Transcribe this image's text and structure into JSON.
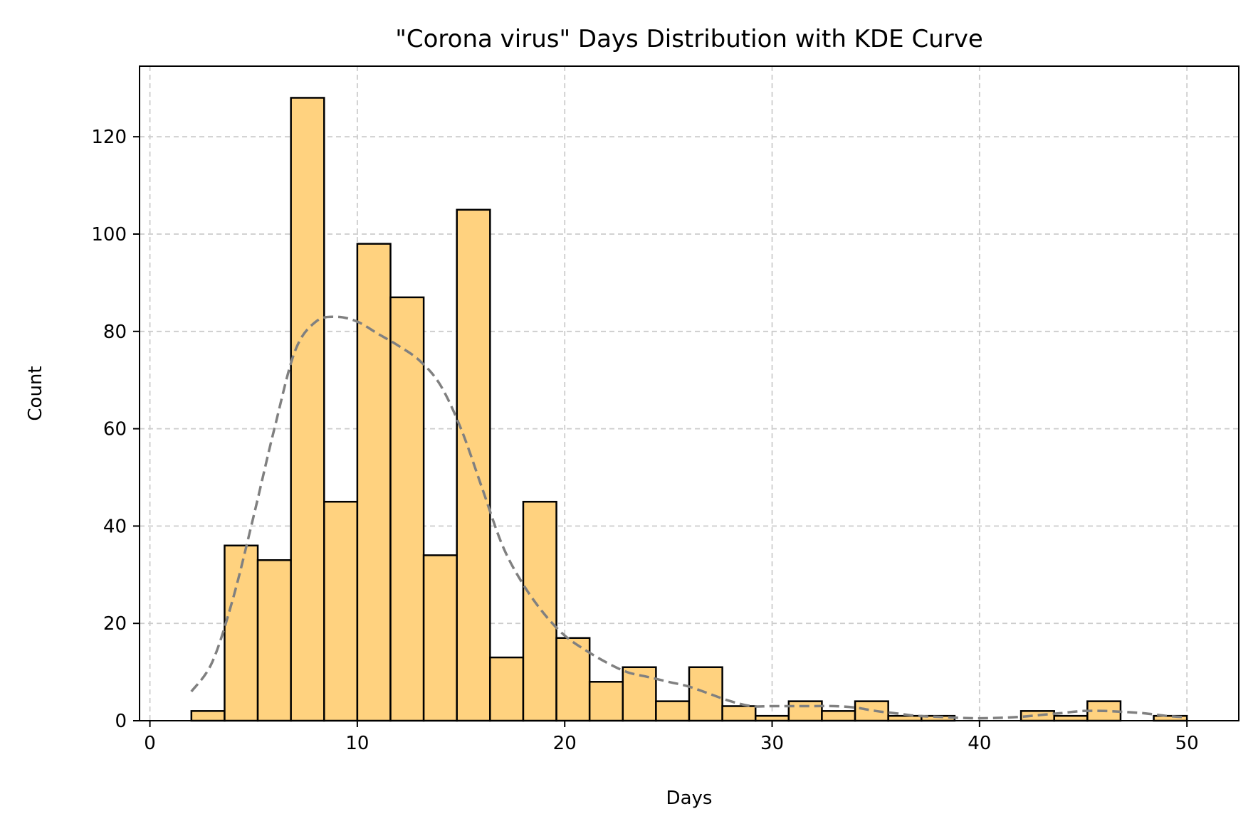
{
  "chart_data": {
    "type": "bar",
    "title": "\"Corona virus\" Days Distribution with KDE Curve",
    "xlabel": "Days",
    "ylabel": "Count",
    "xlim": [
      -0.5,
      52.5
    ],
    "ylim": [
      0,
      134.5
    ],
    "xticks": [
      0,
      10,
      20,
      30,
      40,
      50
    ],
    "yticks": [
      0,
      20,
      40,
      60,
      80,
      100,
      120
    ],
    "grid": true,
    "bar_color": "#FFD27F",
    "edge_color": "#000000",
    "kde_color": "#808080",
    "bins": [
      {
        "x0": 2.0,
        "x1": 3.6,
        "count": 2
      },
      {
        "x0": 3.6,
        "x1": 5.2,
        "count": 36
      },
      {
        "x0": 5.2,
        "x1": 6.8,
        "count": 33
      },
      {
        "x0": 6.8,
        "x1": 8.4,
        "count": 128
      },
      {
        "x0": 8.4,
        "x1": 10.0,
        "count": 45
      },
      {
        "x0": 10.0,
        "x1": 11.6,
        "count": 98
      },
      {
        "x0": 11.6,
        "x1": 13.2,
        "count": 87
      },
      {
        "x0": 13.2,
        "x1": 14.8,
        "count": 34
      },
      {
        "x0": 14.8,
        "x1": 16.4,
        "count": 105
      },
      {
        "x0": 16.4,
        "x1": 18.0,
        "count": 13
      },
      {
        "x0": 18.0,
        "x1": 19.6,
        "count": 45
      },
      {
        "x0": 19.6,
        "x1": 21.2,
        "count": 17
      },
      {
        "x0": 21.2,
        "x1": 22.8,
        "count": 8
      },
      {
        "x0": 22.8,
        "x1": 24.4,
        "count": 11
      },
      {
        "x0": 24.4,
        "x1": 26.0,
        "count": 4
      },
      {
        "x0": 26.0,
        "x1": 27.6,
        "count": 11
      },
      {
        "x0": 27.6,
        "x1": 29.2,
        "count": 3
      },
      {
        "x0": 29.2,
        "x1": 30.8,
        "count": 1
      },
      {
        "x0": 30.8,
        "x1": 32.4,
        "count": 4
      },
      {
        "x0": 32.4,
        "x1": 34.0,
        "count": 2
      },
      {
        "x0": 34.0,
        "x1": 35.6,
        "count": 4
      },
      {
        "x0": 35.6,
        "x1": 37.2,
        "count": 1
      },
      {
        "x0": 37.2,
        "x1": 38.8,
        "count": 1
      },
      {
        "x0": 38.8,
        "x1": 40.4,
        "count": 0
      },
      {
        "x0": 40.4,
        "x1": 42.0,
        "count": 0
      },
      {
        "x0": 42.0,
        "x1": 43.6,
        "count": 2
      },
      {
        "x0": 43.6,
        "x1": 45.2,
        "count": 1
      },
      {
        "x0": 45.2,
        "x1": 46.8,
        "count": 4
      },
      {
        "x0": 46.8,
        "x1": 48.4,
        "count": 0
      },
      {
        "x0": 48.4,
        "x1": 50.0,
        "count": 1
      }
    ],
    "kde": {
      "x": [
        2,
        3,
        4,
        5,
        6,
        7,
        8,
        9,
        10,
        11,
        12,
        13,
        14,
        15,
        16,
        17,
        18,
        19,
        20,
        21,
        22,
        23,
        24,
        25,
        26,
        27,
        28,
        29,
        30,
        31,
        32,
        33,
        34,
        35,
        36,
        37,
        38,
        39,
        40,
        41,
        42,
        43,
        44,
        45,
        46,
        47,
        48,
        49,
        50
      ],
      "y": [
        6,
        12,
        25,
        42,
        60,
        76,
        82,
        83,
        82,
        79.5,
        77,
        74,
        69,
        60,
        48,
        36,
        28,
        22,
        17.5,
        14.5,
        12,
        10,
        9,
        8,
        7,
        5.5,
        4,
        3,
        3,
        3,
        3,
        3,
        2.7,
        2,
        1.5,
        1,
        0.8,
        0.6,
        0.5,
        0.6,
        0.8,
        1.2,
        1.6,
        2,
        2,
        1.8,
        1.5,
        1,
        0.7
      ]
    }
  }
}
